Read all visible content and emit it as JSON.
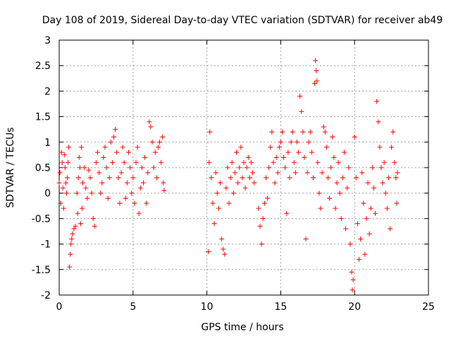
{
  "chart_data": {
    "type": "scatter",
    "title": "Day 108 of 2019, Sidereal Day-to-day VTEC variation (SDTVAR) for receiver ab49",
    "xlabel": "GPS time / hours",
    "ylabel": "SDTVAR / TECUs",
    "xlim": [
      0,
      25
    ],
    "ylim": [
      -2,
      3
    ],
    "xticks": [
      0,
      5,
      10,
      15,
      20,
      25
    ],
    "yticks": [
      -2,
      -1.5,
      -1,
      -0.5,
      0,
      0.5,
      1,
      1.5,
      2,
      2.5,
      3
    ],
    "xtick_labels": [
      "0",
      "5",
      "10",
      "15",
      "20",
      "25"
    ],
    "ytick_labels": [
      "-2",
      "-1.5",
      "-1",
      "-0.5",
      "0",
      "0.5",
      "1",
      "1.5",
      "2",
      "2.5",
      "3"
    ],
    "grid": true,
    "marker": "+",
    "marker_color": "#ff0000",
    "series": [
      {
        "name": "SDTVAR",
        "points": [
          [
            0.0,
            0.2
          ],
          [
            0.05,
            0.4
          ],
          [
            0.1,
            -0.2
          ],
          [
            0.15,
            0.8
          ],
          [
            0.2,
            0.6
          ],
          [
            0.25,
            0.1
          ],
          [
            0.3,
            -0.3
          ],
          [
            0.35,
            0.75
          ],
          [
            0.4,
            0.5
          ],
          [
            0.45,
            0.2
          ],
          [
            0.5,
            0.0
          ],
          [
            0.55,
            0.3
          ],
          [
            0.6,
            0.6
          ],
          [
            0.65,
            0.9
          ],
          [
            0.7,
            -1.45
          ],
          [
            0.75,
            -1.2
          ],
          [
            0.8,
            -1.0
          ],
          [
            0.85,
            -0.9
          ],
          [
            0.9,
            -0.8
          ],
          [
            1.0,
            -0.7
          ],
          [
            1.1,
            -0.65
          ],
          [
            1.2,
            0.0
          ],
          [
            1.25,
            -0.4
          ],
          [
            1.3,
            0.3
          ],
          [
            1.35,
            0.7
          ],
          [
            1.4,
            0.5
          ],
          [
            1.45,
            -0.6
          ],
          [
            1.5,
            0.9
          ],
          [
            1.55,
            -0.3
          ],
          [
            1.6,
            0.2
          ],
          [
            1.7,
            0.5
          ],
          [
            1.8,
            0.1
          ],
          [
            1.9,
            -0.1
          ],
          [
            2.0,
            0.45
          ],
          [
            2.1,
            0.3
          ],
          [
            2.2,
            0.0
          ],
          [
            2.3,
            -0.5
          ],
          [
            2.4,
            -0.65
          ],
          [
            2.5,
            0.6
          ],
          [
            2.6,
            0.8
          ],
          [
            2.7,
            0.4
          ],
          [
            2.8,
            0.0
          ],
          [
            2.9,
            0.2
          ],
          [
            3.0,
            0.7
          ],
          [
            3.1,
            0.9
          ],
          [
            3.2,
            0.5
          ],
          [
            3.3,
            -0.1
          ],
          [
            3.4,
            0.3
          ],
          [
            3.5,
            1.0
          ],
          [
            3.6,
            0.6
          ],
          [
            3.7,
            1.1
          ],
          [
            3.8,
            1.25
          ],
          [
            3.9,
            0.8
          ],
          [
            4.0,
            0.3
          ],
          [
            4.1,
            -0.2
          ],
          [
            4.2,
            0.4
          ],
          [
            4.3,
            0.9
          ],
          [
            4.4,
            0.6
          ],
          [
            4.5,
            -0.1
          ],
          [
            4.6,
            0.2
          ],
          [
            4.7,
            0.8
          ],
          [
            4.8,
            0.5
          ],
          [
            4.9,
            0.0
          ],
          [
            5.0,
            0.3
          ],
          [
            5.1,
            -0.2
          ],
          [
            5.2,
            0.6
          ],
          [
            5.3,
            0.9
          ],
          [
            5.4,
            -0.4
          ],
          [
            5.5,
            0.1
          ],
          [
            5.6,
            0.5
          ],
          [
            5.7,
            0.2
          ],
          [
            5.8,
            0.7
          ],
          [
            5.9,
            -0.2
          ],
          [
            6.0,
            0.4
          ],
          [
            6.1,
            1.4
          ],
          [
            6.2,
            1.3
          ],
          [
            6.3,
            1.0
          ],
          [
            6.4,
            0.5
          ],
          [
            6.5,
            0.8
          ],
          [
            6.6,
            0.3
          ],
          [
            6.7,
            0.9
          ],
          [
            6.8,
            1.0
          ],
          [
            6.9,
            0.6
          ],
          [
            7.0,
            1.1
          ],
          [
            7.05,
            0.2
          ],
          [
            7.1,
            0.05
          ],
          [
            10.1,
            -1.15
          ],
          [
            10.15,
            0.6
          ],
          [
            10.2,
            1.2
          ],
          [
            10.3,
            0.3
          ],
          [
            10.4,
            -0.2
          ],
          [
            10.5,
            -0.6
          ],
          [
            10.6,
            0.4
          ],
          [
            10.7,
            0.0
          ],
          [
            10.8,
            -0.3
          ],
          [
            10.9,
            0.2
          ],
          [
            11.0,
            -0.9
          ],
          [
            11.1,
            -1.1
          ],
          [
            11.2,
            -1.2
          ],
          [
            11.3,
            0.1
          ],
          [
            11.4,
            0.5
          ],
          [
            11.5,
            -0.2
          ],
          [
            11.6,
            0.3
          ],
          [
            11.7,
            0.6
          ],
          [
            11.8,
            0.0
          ],
          [
            11.9,
            0.4
          ],
          [
            12.0,
            0.8
          ],
          [
            12.1,
            0.2
          ],
          [
            12.2,
            0.5
          ],
          [
            12.3,
            0.9
          ],
          [
            12.4,
            0.3
          ],
          [
            12.5,
            0.6
          ],
          [
            12.6,
            0.1
          ],
          [
            12.7,
            0.5
          ],
          [
            12.8,
            0.7
          ],
          [
            12.9,
            0.3
          ],
          [
            13.0,
            0.6
          ],
          [
            13.1,
            0.4
          ],
          [
            13.2,
            0.2
          ],
          [
            13.5,
            -0.3
          ],
          [
            13.6,
            -0.65
          ],
          [
            13.7,
            -1.0
          ],
          [
            13.8,
            -0.5
          ],
          [
            13.9,
            -0.2
          ],
          [
            14.0,
            0.3
          ],
          [
            14.1,
            -0.1
          ],
          [
            14.2,
            0.5
          ],
          [
            14.3,
            0.9
          ],
          [
            14.4,
            1.2
          ],
          [
            14.5,
            0.6
          ],
          [
            14.6,
            0.2
          ],
          [
            14.7,
            0.7
          ],
          [
            14.8,
            0.4
          ],
          [
            14.9,
            0.9
          ],
          [
            15.0,
            1.0
          ],
          [
            15.1,
            1.2
          ],
          [
            15.2,
            0.7
          ],
          [
            15.3,
            0.5
          ],
          [
            15.4,
            -0.4
          ],
          [
            15.5,
            0.8
          ],
          [
            15.6,
            0.3
          ],
          [
            15.7,
            1.0
          ],
          [
            15.8,
            1.2
          ],
          [
            15.9,
            0.6
          ],
          [
            16.0,
            0.4
          ],
          [
            16.1,
            1.0
          ],
          [
            16.2,
            0.8
          ],
          [
            16.3,
            1.9
          ],
          [
            16.4,
            1.6
          ],
          [
            16.5,
            1.2
          ],
          [
            16.6,
            0.7
          ],
          [
            16.7,
            -0.9
          ],
          [
            16.8,
            0.4
          ],
          [
            16.9,
            1.0
          ],
          [
            17.0,
            1.2
          ],
          [
            17.1,
            0.8
          ],
          [
            17.2,
            0.3
          ],
          [
            17.3,
            2.15
          ],
          [
            17.35,
            2.6
          ],
          [
            17.4,
            2.4
          ],
          [
            17.45,
            2.2
          ],
          [
            17.5,
            0.6
          ],
          [
            17.6,
            0.0
          ],
          [
            17.7,
            -0.3
          ],
          [
            17.8,
            0.4
          ],
          [
            17.9,
            1.3
          ],
          [
            18.0,
            1.2
          ],
          [
            18.1,
            0.9
          ],
          [
            18.2,
            0.3
          ],
          [
            18.3,
            -0.1
          ],
          [
            18.4,
            0.5
          ],
          [
            18.5,
            1.1
          ],
          [
            18.6,
            0.7
          ],
          [
            18.7,
            -0.3
          ],
          [
            18.8,
            0.2
          ],
          [
            18.9,
            0.6
          ],
          [
            19.0,
            0.0
          ],
          [
            19.1,
            -0.5
          ],
          [
            19.2,
            0.3
          ],
          [
            19.3,
            0.8
          ],
          [
            19.4,
            -0.7
          ],
          [
            19.5,
            0.1
          ],
          [
            19.6,
            0.5
          ],
          [
            19.7,
            -1.0
          ],
          [
            19.8,
            -1.55
          ],
          [
            19.85,
            -1.9
          ],
          [
            19.9,
            -1.7
          ],
          [
            20.0,
            1.1
          ],
          [
            20.1,
            0.3
          ],
          [
            20.2,
            -0.6
          ],
          [
            20.3,
            -1.3
          ],
          [
            20.4,
            -0.9
          ],
          [
            20.5,
            0.4
          ],
          [
            20.6,
            -0.2
          ],
          [
            20.7,
            -1.2
          ],
          [
            20.8,
            -0.5
          ],
          [
            20.9,
            0.2
          ],
          [
            21.0,
            -0.8
          ],
          [
            21.1,
            -0.3
          ],
          [
            21.2,
            0.5
          ],
          [
            21.3,
            0.1
          ],
          [
            21.4,
            -0.4
          ],
          [
            21.5,
            1.8
          ],
          [
            21.6,
            1.4
          ],
          [
            21.7,
            0.9
          ],
          [
            21.8,
            0.5
          ],
          [
            21.9,
            0.2
          ],
          [
            22.0,
            0.6
          ],
          [
            22.1,
            0.0
          ],
          [
            22.2,
            -0.3
          ],
          [
            22.3,
            0.3
          ],
          [
            22.4,
            -0.7
          ],
          [
            22.5,
            0.9
          ],
          [
            22.6,
            1.2
          ],
          [
            22.7,
            0.6
          ],
          [
            22.8,
            0.3
          ],
          [
            22.85,
            -0.2
          ],
          [
            22.9,
            0.4
          ]
        ]
      }
    ]
  }
}
